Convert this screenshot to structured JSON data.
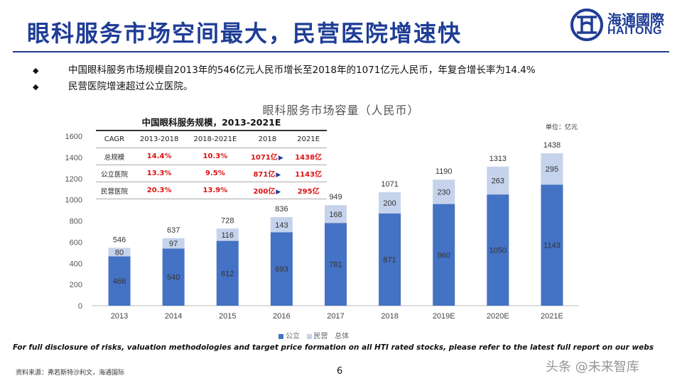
{
  "header": {
    "title": "眼科服务市场空间最大，民营医院增速快",
    "logo_cn": "海通國際",
    "logo_en": "HAITONG"
  },
  "bullets": [
    "中国眼科服务市场规模自2013年的546亿元人民币增长至2018年的1071亿元人民币，年复合增长率为14.4%",
    "民营医院增速超过公立医院。"
  ],
  "chart_data": {
    "type": "bar",
    "stacked": true,
    "title": "眼科服务市场容量（人民币）",
    "unit": "单位：亿元",
    "categories": [
      "2013",
      "2014",
      "2015",
      "2016",
      "2017",
      "2018",
      "2019E",
      "2020E",
      "2021E"
    ],
    "series": [
      {
        "name": "公立",
        "values": [
          466,
          540,
          612,
          693,
          781,
          871,
          960,
          1050,
          1143
        ],
        "color": "#4472c4"
      },
      {
        "name": "民营",
        "values": [
          80,
          97,
          116,
          143,
          168,
          200,
          230,
          263,
          295
        ],
        "color": "#c5d3ec"
      }
    ],
    "totals_label": "总体",
    "totals": [
      546,
      637,
      728,
      836,
      949,
      1071,
      1190,
      1313,
      1438
    ],
    "ylim": [
      0,
      1600
    ],
    "yticks": [
      0,
      200,
      400,
      600,
      800,
      1000,
      1200,
      1400,
      1600
    ],
    "legend_position": "bottom"
  },
  "inset_table": {
    "title": "中国眼科服务规模，2013-2021E",
    "headers": [
      "CAGR",
      "2013-2018",
      "2018-2021E",
      "2018",
      "2021E"
    ],
    "rows": [
      {
        "label": "总规模",
        "c1": "14.4%",
        "c2": "10.3%",
        "v2018": "1071亿",
        "v2021": "1438亿"
      },
      {
        "label": "公立医院",
        "c1": "13.3%",
        "c2": "9.5%",
        "v2018": "871亿",
        "v2021": "1143亿"
      },
      {
        "label": "民营医院",
        "c1": "20.3%",
        "c2": "13.9%",
        "v2018": "200亿",
        "v2021": "295亿"
      }
    ]
  },
  "footer": {
    "disclaimer": "For full disclosure of risks, valuation methodologies and target price formation on all HTI rated stocks, please refer to the latest full report on our webs",
    "source": "资料来源：弗若斯特沙利文，海通国际",
    "page": "6",
    "watermark": "头条 @未来智库"
  }
}
